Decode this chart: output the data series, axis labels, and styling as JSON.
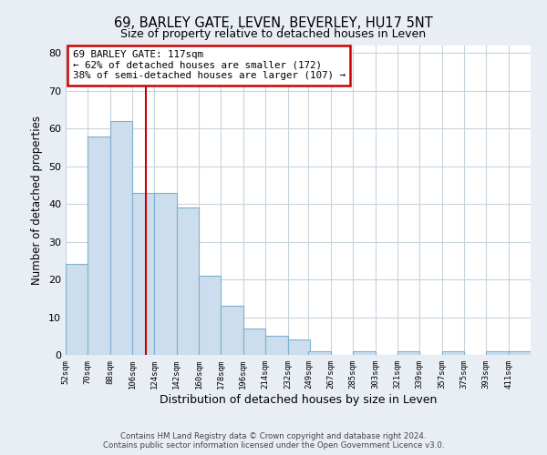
{
  "title": "69, BARLEY GATE, LEVEN, BEVERLEY, HU17 5NT",
  "subtitle": "Size of property relative to detached houses in Leven",
  "xlabel": "Distribution of detached houses by size in Leven",
  "ylabel": "Number of detached properties",
  "bar_edges": [
    52,
    70,
    88,
    106,
    124,
    142,
    160,
    178,
    196,
    214,
    232,
    249,
    267,
    285,
    303,
    321,
    339,
    357,
    375,
    393,
    411
  ],
  "bar_heights": [
    24,
    58,
    62,
    43,
    43,
    39,
    21,
    13,
    7,
    5,
    4,
    1,
    0,
    1,
    0,
    1,
    0,
    1,
    0,
    1,
    1
  ],
  "bar_color": "#ccdded",
  "bar_edgecolor": "#7fb0d0",
  "vline_x": 117,
  "vline_color": "#cc0000",
  "annotation_box_text": "69 BARLEY GATE: 117sqm\n← 62% of detached houses are smaller (172)\n38% of semi-detached houses are larger (107) →",
  "annotation_box_color": "#cc0000",
  "ylim": [
    0,
    82
  ],
  "yticks": [
    0,
    10,
    20,
    30,
    40,
    50,
    60,
    70,
    80
  ],
  "tick_labels": [
    "52sqm",
    "70sqm",
    "88sqm",
    "106sqm",
    "124sqm",
    "142sqm",
    "160sqm",
    "178sqm",
    "196sqm",
    "214sqm",
    "232sqm",
    "249sqm",
    "267sqm",
    "285sqm",
    "303sqm",
    "321sqm",
    "339sqm",
    "357sqm",
    "375sqm",
    "393sqm",
    "411sqm"
  ],
  "footer_line1": "Contains HM Land Registry data © Crown copyright and database right 2024.",
  "footer_line2": "Contains public sector information licensed under the Open Government Licence v3.0.",
  "bg_color": "#e8eef4",
  "plot_bg_color": "#ffffff",
  "grid_color": "#c8d4dc"
}
